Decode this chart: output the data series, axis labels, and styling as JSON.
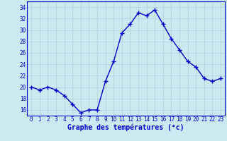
{
  "hours": [
    0,
    1,
    2,
    3,
    4,
    5,
    6,
    7,
    8,
    9,
    10,
    11,
    12,
    13,
    14,
    15,
    16,
    17,
    18,
    19,
    20,
    21,
    22,
    23
  ],
  "temps": [
    20,
    19.5,
    20,
    19.5,
    18.5,
    17,
    15.5,
    16,
    16,
    21,
    24.5,
    29.5,
    31,
    33,
    32.5,
    33.5,
    31,
    28.5,
    26.5,
    24.5,
    23.5,
    21.5,
    21,
    21.5
  ],
  "line_color": "#0000cc",
  "marker": "+",
  "marker_size": 4,
  "bg_color": "#cce8f0",
  "grid_color": "#b0cfd8",
  "xlabel": "Graphe des températures (°c)",
  "xlabel_color": "#0000cc",
  "xlabel_fontsize": 7,
  "tick_color": "#0000cc",
  "tick_fontsize": 5.5,
  "ylim": [
    15,
    35
  ],
  "yticks": [
    16,
    18,
    20,
    22,
    24,
    26,
    28,
    30,
    32,
    34
  ],
  "xlim": [
    -0.5,
    23.5
  ],
  "xticks": [
    0,
    1,
    2,
    3,
    4,
    5,
    6,
    7,
    8,
    9,
    10,
    11,
    12,
    13,
    14,
    15,
    16,
    17,
    18,
    19,
    20,
    21,
    22,
    23
  ],
  "line_width": 1.0,
  "spine_color": "#0000cc"
}
